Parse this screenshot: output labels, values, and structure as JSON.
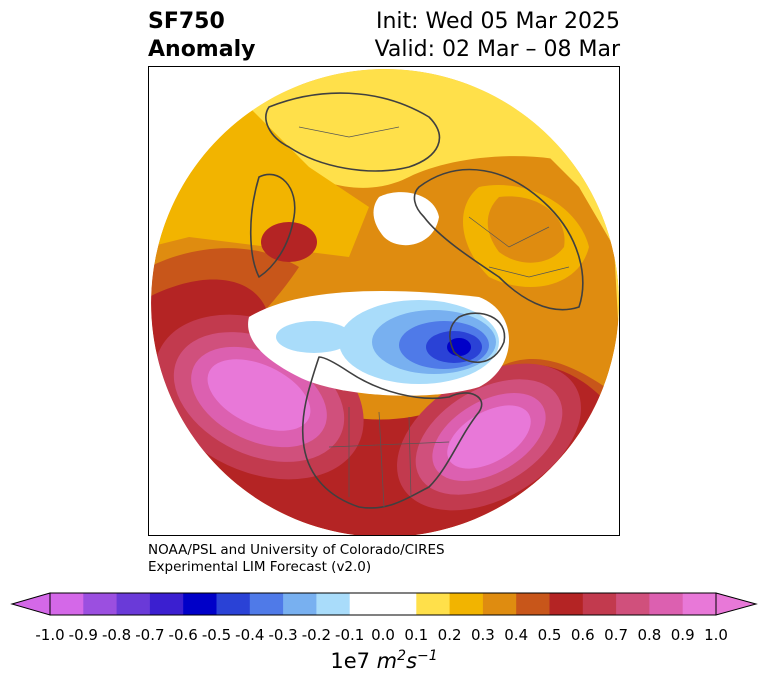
{
  "title": {
    "left_line1": "SF750",
    "left_line2": "Anomaly",
    "right_line1": "Init: Wed 05 Mar 2025",
    "right_line2": "Valid: 02 Mar – 08 Mar"
  },
  "credit": {
    "line1": "NOAA/PSL and University of Colorado/CIRES",
    "line2": "Experimental LIM Forecast (v2.0)"
  },
  "colorbar": {
    "ticks": [
      "-1.0",
      "-0.9",
      "-0.8",
      "-0.7",
      "-0.6",
      "-0.5",
      "-0.4",
      "-0.3",
      "-0.2",
      "-0.1",
      "0.0",
      "0.1",
      "0.2",
      "0.3",
      "0.4",
      "0.5",
      "0.6",
      "0.7",
      "0.8",
      "0.9",
      "1.0"
    ],
    "colors": [
      "#d468e8",
      "#9b4fe0",
      "#6a3ad8",
      "#3b1fd0",
      "#0000c8",
      "#2a42d6",
      "#4f7ae8",
      "#78b0f0",
      "#a9dcfa",
      "#ffffff",
      "#ffffff",
      "#ffe04a",
      "#f2b400",
      "#df8c10",
      "#c8561a",
      "#b42424",
      "#c23a4e",
      "#d0507c",
      "#dc60b0",
      "#e878d8"
    ],
    "units_base": "1e7 ",
    "units_m": "m",
    "units_m_exp": "2",
    "units_s": "s",
    "units_s_exp": "−1"
  },
  "map": {
    "projection": "north-polar-stereographic",
    "field": "750 hPa streamfunction anomaly"
  }
}
